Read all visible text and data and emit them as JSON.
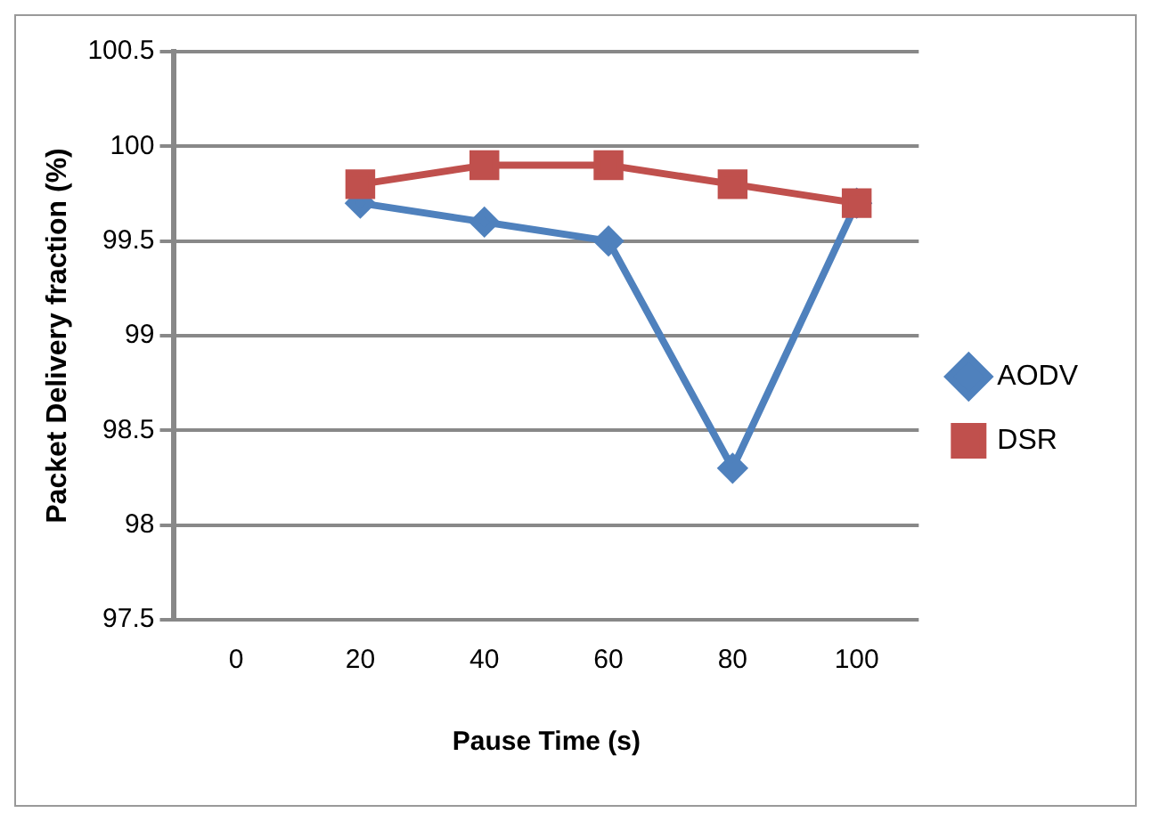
{
  "chart_data": {
    "type": "line",
    "xlabel": "Pause Time (s)",
    "ylabel": "Packet Delivery fraction (%)",
    "categories": [
      "0",
      "20",
      "40",
      "60",
      "80",
      "100"
    ],
    "series": [
      {
        "name": "AODV",
        "color": "#4f81bd",
        "marker": "diamond",
        "values": [
          null,
          99.7,
          99.6,
          99.5,
          98.3,
          99.7
        ]
      },
      {
        "name": "DSR",
        "color": "#c0504d",
        "marker": "square",
        "values": [
          null,
          99.8,
          99.9,
          99.9,
          99.8,
          99.7
        ]
      }
    ],
    "ylim": [
      97.5,
      100.5
    ],
    "yticks": [
      97.5,
      98,
      98.5,
      99,
      99.5,
      100,
      100.5
    ],
    "grid": "y",
    "legend": "right"
  }
}
